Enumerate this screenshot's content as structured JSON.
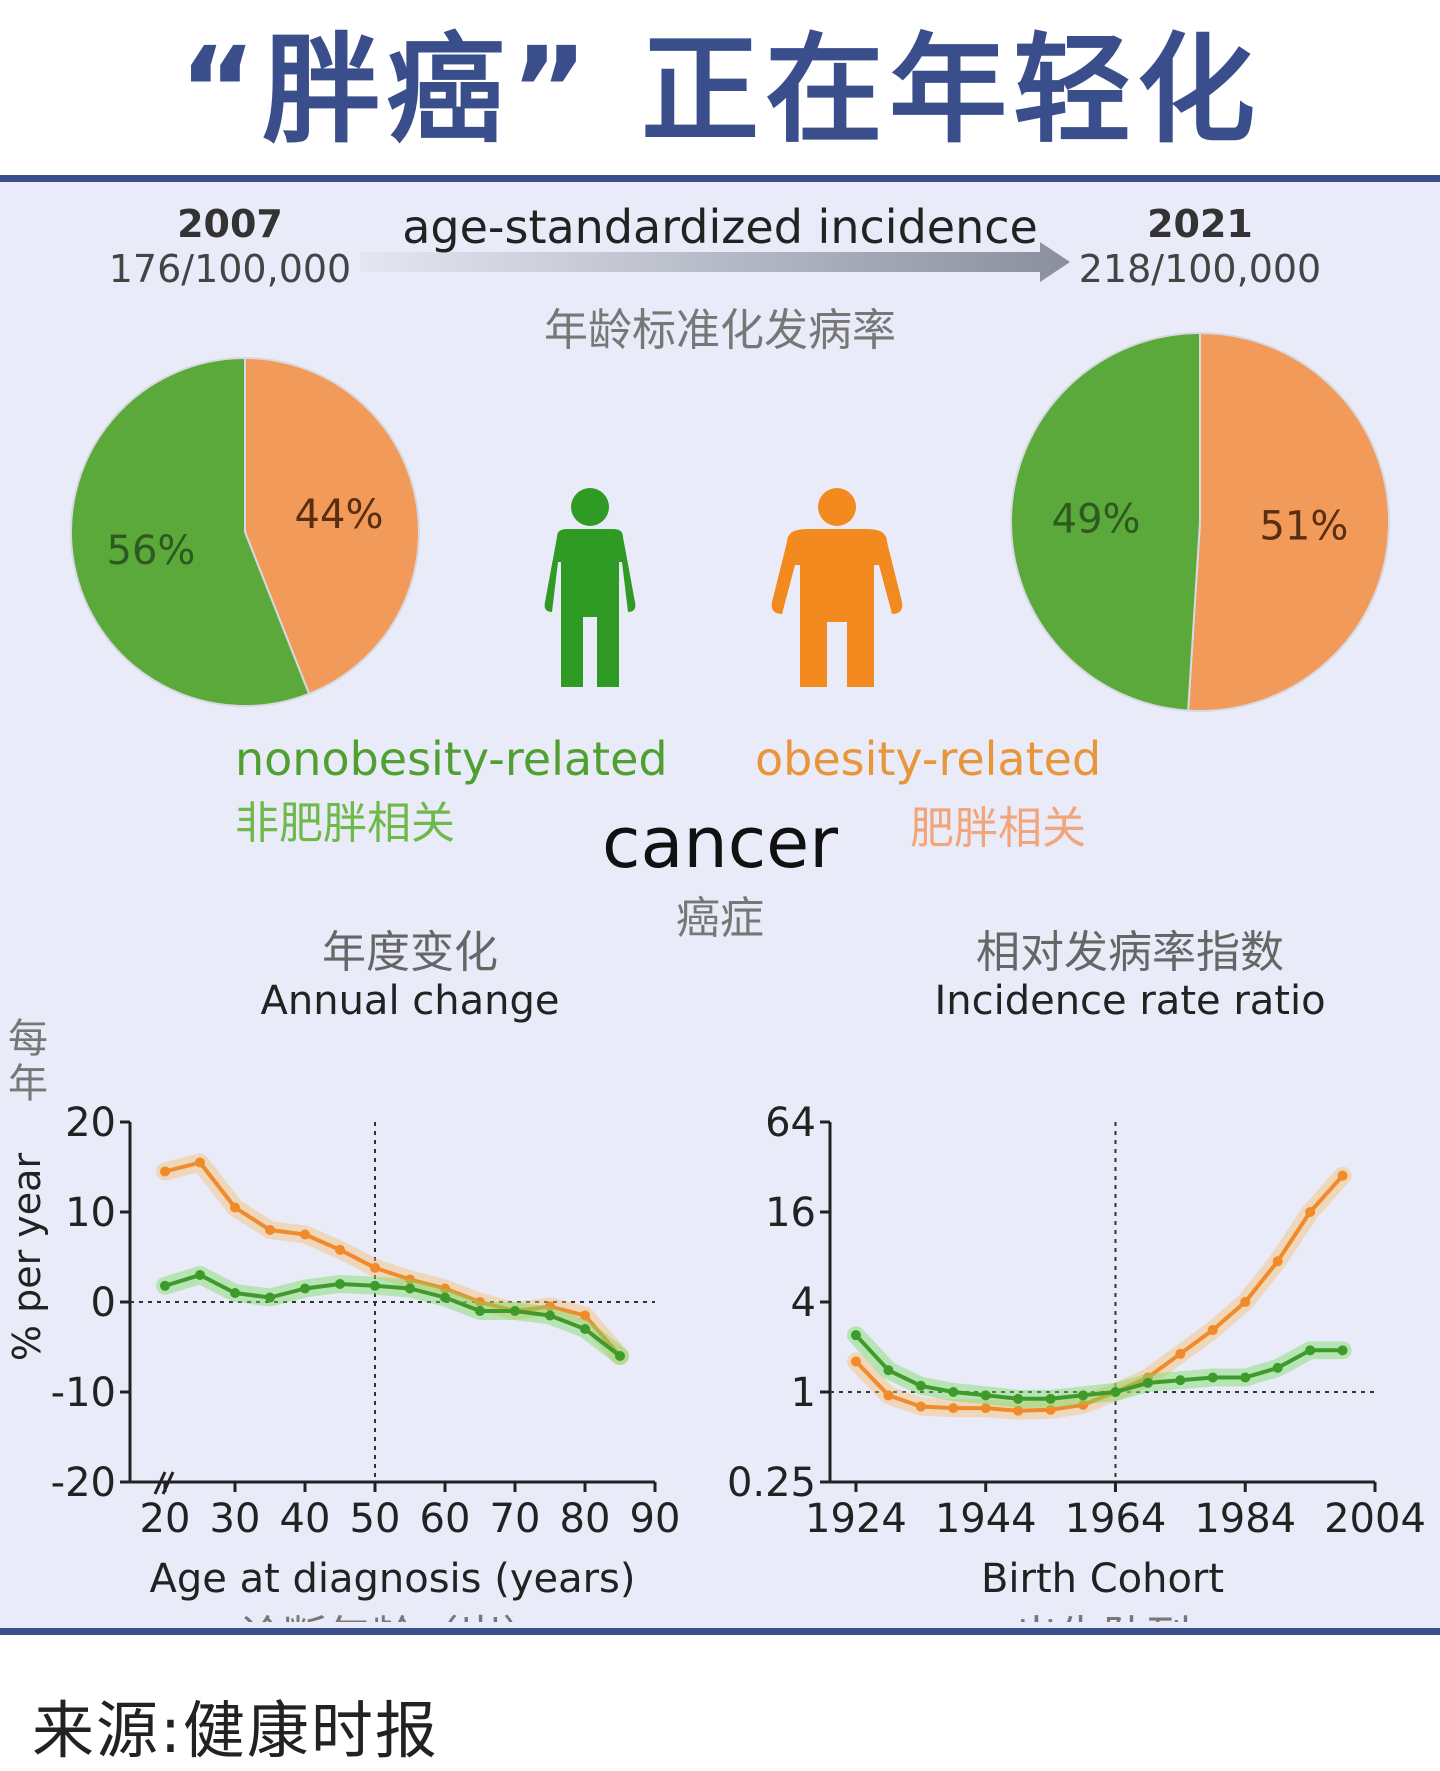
{
  "title": "“胖癌” 正在年轻化",
  "header": {
    "year_left": "2007",
    "rate_left": "176/100,000",
    "year_right": "2021",
    "rate_right": "218/100,000",
    "arrow_label": "age-standardized incidence",
    "arrow_label_cn": "年龄标准化发病率"
  },
  "legend": {
    "nonobesity_en": "nonobesity-related",
    "nonobesity_cn": "非肥胖相关",
    "obesity_en": "obesity-related",
    "obesity_cn": "肥胖相关",
    "cancer_en": "cancer",
    "cancer_cn": "癌症"
  },
  "colors": {
    "title": "#3a4e8c",
    "nonobesity": "#3f9a2c",
    "obesity": "#f08a2a",
    "pie_green": "#5aa93a",
    "pie_orange": "#f29a5a",
    "panel_bg": "#e9ecf8"
  },
  "icons": [
    "person-green-icon",
    "person-orange-icon"
  ],
  "chart_data": [
    {
      "type": "pie",
      "title": "2007",
      "labels": [
        "nonobesity-related",
        "obesity-related"
      ],
      "values": [
        56,
        44
      ],
      "value_labels": [
        "56%",
        "44%"
      ]
    },
    {
      "type": "pie",
      "title": "2021",
      "labels": [
        "nonobesity-related",
        "obesity-related"
      ],
      "values": [
        49,
        51
      ],
      "value_labels": [
        "49%",
        "51%"
      ]
    },
    {
      "type": "line",
      "title_cn": "年度变化",
      "title": "Annual change",
      "ylabel": "% per year",
      "ylabel_cn": "每年",
      "xlabel": "Age at diagnosis (years)",
      "xlabel_cn": "诊断年龄（岁）",
      "xlim": [
        15,
        90
      ],
      "ylim": [
        -20,
        20
      ],
      "xticks": [
        "20",
        "30",
        "40",
        "50",
        "60",
        "70",
        "80",
        "90"
      ],
      "yticks": [
        "20",
        "10",
        "0",
        "-10",
        "-20"
      ],
      "reference_lines": {
        "x": 50,
        "y": 0
      },
      "series": [
        {
          "name": "obesity-related",
          "x": [
            20,
            25,
            30,
            35,
            40,
            45,
            50,
            55,
            60,
            65,
            70,
            75,
            80,
            85
          ],
          "values": [
            14.5,
            15.5,
            10.5,
            8,
            7.5,
            5.8,
            3.8,
            2.5,
            1.5,
            0,
            -1,
            -0.5,
            -1.5,
            -6
          ]
        },
        {
          "name": "nonobesity-related",
          "x": [
            20,
            25,
            30,
            35,
            40,
            45,
            50,
            55,
            60,
            65,
            70,
            75,
            80,
            85
          ],
          "values": [
            1.8,
            3,
            1,
            0.5,
            1.5,
            2,
            1.8,
            1.5,
            0.5,
            -1,
            -1,
            -1.5,
            -3,
            -6
          ]
        }
      ]
    },
    {
      "type": "line",
      "title_cn": "相对发病率指数",
      "title": "Incidence rate ratio",
      "xlabel": "Birth Cohort",
      "xlabel_cn": "出生队列",
      "yscale": "log2",
      "ylim": [
        0.25,
        64
      ],
      "xlim": [
        1920,
        2004
      ],
      "xticks": [
        "1924",
        "1944",
        "1964",
        "1984",
        "2004"
      ],
      "yticks": [
        "64",
        "16",
        "4",
        "1",
        "0.25"
      ],
      "reference_lines": {
        "x": 1964,
        "y": 1
      },
      "series": [
        {
          "name": "obesity-related",
          "x": [
            1924,
            1929,
            1934,
            1939,
            1944,
            1949,
            1954,
            1959,
            1964,
            1969,
            1974,
            1979,
            1984,
            1989,
            1994,
            1999
          ],
          "values": [
            1.6,
            0.95,
            0.8,
            0.78,
            0.78,
            0.75,
            0.76,
            0.82,
            1.0,
            1.25,
            1.8,
            2.6,
            4.0,
            7.5,
            16,
            28
          ]
        },
        {
          "name": "nonobesity-related",
          "x": [
            1924,
            1929,
            1934,
            1939,
            1944,
            1949,
            1954,
            1959,
            1964,
            1969,
            1974,
            1979,
            1984,
            1989,
            1994,
            1999
          ],
          "values": [
            2.4,
            1.4,
            1.1,
            1.0,
            0.95,
            0.9,
            0.9,
            0.95,
            1.0,
            1.15,
            1.2,
            1.25,
            1.25,
            1.45,
            1.9,
            1.9
          ]
        }
      ]
    }
  ],
  "source": "来源:健康时报"
}
